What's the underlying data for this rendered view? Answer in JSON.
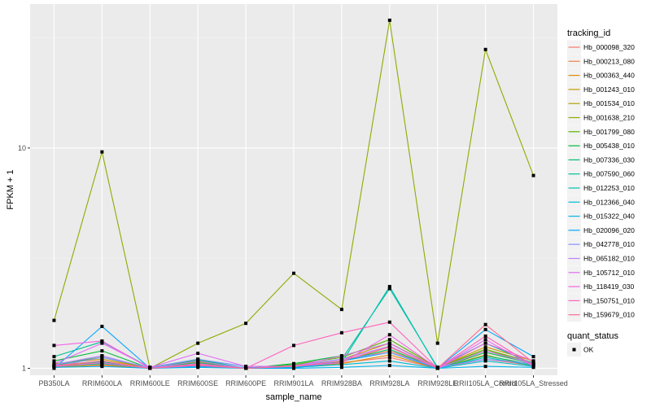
{
  "chart_data": {
    "type": "line",
    "title": "",
    "xlabel": "sample_name",
    "ylabel": "FPKM + 1",
    "y_scale": "log10",
    "ylim": [
      0.93,
      45
    ],
    "yticks": [
      1,
      10
    ],
    "ytick_labels": [
      "1",
      "10"
    ],
    "categories": [
      "PB350LA",
      "RRIM600LA",
      "RRIM600LE",
      "RRIM600SE",
      "RRIM600PE",
      "RRIM901LA",
      "RRIM928BA",
      "RRIM928LA",
      "RRIM928LE",
      "RRII105LA_Control",
      "RRII105LA_Stressed"
    ],
    "category_labels": [
      "PB350LA",
      "RRIM600LA",
      "RRIM600LE",
      "RRIM600SE",
      "RRIM600PE",
      "RRIM901LA",
      "RRIM928BA",
      "RRIM928LA",
      "RRIM928LE",
      "RRII105LA_Control",
      "RRII105LA_Stressed"
    ],
    "legend": {
      "title": "tracking_id",
      "position": "right",
      "shape_title": "quant_status",
      "shape_label": "OK"
    },
    "series": [
      {
        "name": "Hb_000098_320",
        "color": "#F8766D",
        "values": [
          1.02,
          1.03,
          1.0,
          1.03,
          1.0,
          1.01,
          1.06,
          1.12,
          1.0,
          1.1,
          1.03
        ]
      },
      {
        "name": "Hb_000213_080",
        "color": "#EE8043",
        "values": [
          1.03,
          1.06,
          1.0,
          1.05,
          1.0,
          1.02,
          1.08,
          1.2,
          1.0,
          1.2,
          1.05
        ]
      },
      {
        "name": "Hb_000363_440",
        "color": "#DF8C00",
        "values": [
          1.01,
          1.04,
          1.0,
          1.02,
          1.0,
          1.01,
          1.05,
          1.15,
          1.0,
          1.15,
          1.02
        ]
      },
      {
        "name": "Hb_001243_010",
        "color": "#CB9600",
        "values": [
          1.05,
          1.1,
          1.0,
          1.07,
          1.0,
          1.03,
          1.1,
          1.3,
          1.01,
          1.25,
          1.08
        ]
      },
      {
        "name": "Hb_001534_010",
        "color": "#B09F00",
        "values": [
          1.02,
          1.08,
          1.0,
          1.04,
          1.0,
          1.02,
          1.07,
          1.25,
          1.0,
          1.22,
          1.04
        ]
      },
      {
        "name": "Hb_001638_210",
        "color": "#8EAB00",
        "values": [
          1.65,
          9.6,
          1.0,
          1.3,
          1.6,
          2.7,
          1.85,
          38.0,
          1.3,
          28.0,
          7.5
        ]
      },
      {
        "name": "Hb_001799_080",
        "color": "#5BB300",
        "values": [
          1.04,
          1.12,
          1.0,
          1.08,
          1.0,
          1.04,
          1.12,
          1.35,
          1.01,
          1.22,
          1.06
        ]
      },
      {
        "name": "Hb_005438_010",
        "color": "#00BA38",
        "values": [
          1.08,
          1.2,
          1.0,
          1.09,
          1.0,
          1.05,
          1.14,
          1.3,
          1.0,
          1.18,
          1.05
        ]
      },
      {
        "name": "Hb_007336_030",
        "color": "#00BE6C",
        "values": [
          1.03,
          1.14,
          1.0,
          1.06,
          1.0,
          1.02,
          1.08,
          1.22,
          1.0,
          1.14,
          1.04
        ]
      },
      {
        "name": "Hb_007590_060",
        "color": "#00C094",
        "values": [
          1.13,
          1.32,
          1.01,
          1.1,
          1.0,
          1.03,
          1.1,
          2.3,
          1.01,
          1.3,
          1.05
        ]
      },
      {
        "name": "Hb_012253_010",
        "color": "#00C0B5",
        "values": [
          1.04,
          1.07,
          1.0,
          1.05,
          1.0,
          1.01,
          1.06,
          2.35,
          1.0,
          1.12,
          1.03
        ]
      },
      {
        "name": "Hb_012366_040",
        "color": "#00BCD1",
        "values": [
          1.02,
          1.05,
          1.0,
          1.03,
          1.0,
          1.01,
          1.04,
          1.08,
          1.0,
          1.08,
          1.02
        ]
      },
      {
        "name": "Hb_015322_040",
        "color": "#00B3E9",
        "values": [
          1.01,
          1.02,
          1.0,
          1.01,
          1.0,
          1.0,
          1.01,
          1.03,
          1.0,
          1.02,
          1.01
        ]
      },
      {
        "name": "Hb_020096_020",
        "color": "#00A5FF",
        "values": [
          1.0,
          1.55,
          1.0,
          1.02,
          1.01,
          1.0,
          1.08,
          1.18,
          1.0,
          1.5,
          1.13
        ]
      },
      {
        "name": "Hb_042778_010",
        "color": "#8494FF",
        "values": [
          1.02,
          1.12,
          1.01,
          1.1,
          1.02,
          1.02,
          1.1,
          1.18,
          1.01,
          1.1,
          1.05
        ]
      },
      {
        "name": "Hb_065182_010",
        "color": "#BE80FF",
        "values": [
          1.04,
          1.14,
          1.0,
          1.08,
          1.0,
          1.03,
          1.1,
          1.26,
          1.0,
          1.2,
          1.05
        ]
      },
      {
        "name": "Hb_105712_010",
        "color": "#E36CF4",
        "values": [
          1.05,
          1.3,
          1.01,
          1.17,
          1.02,
          1.02,
          1.14,
          1.3,
          1.0,
          1.35,
          1.02
        ]
      },
      {
        "name": "Hb_118419_030",
        "color": "#F564E3",
        "values": [
          1.27,
          1.33,
          1.0,
          1.05,
          1.0,
          1.02,
          1.06,
          1.42,
          1.0,
          1.3,
          1.08
        ]
      },
      {
        "name": "Hb_150751_010",
        "color": "#FF62BC",
        "values": [
          1.02,
          1.06,
          1.0,
          1.03,
          1.0,
          1.27,
          1.45,
          1.62,
          1.0,
          1.4,
          1.03
        ]
      },
      {
        "name": "Hb_159679_010",
        "color": "#FF6C90",
        "values": [
          1.03,
          1.08,
          1.0,
          1.04,
          1.0,
          1.02,
          1.08,
          1.25,
          1.0,
          1.58,
          1.06
        ]
      }
    ]
  }
}
